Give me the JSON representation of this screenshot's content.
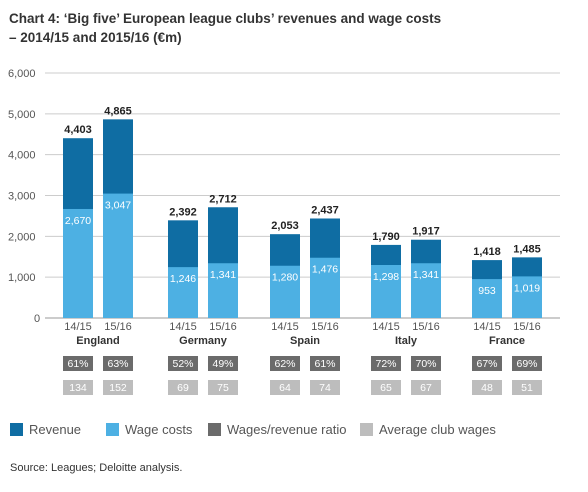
{
  "title_lines": [
    "Chart 4: ‘Big five’ European league clubs’ revenues and wage costs",
    "– 2014/15 and 2015/16 (€m)"
  ],
  "colors": {
    "revenue": "#0f6da3",
    "wage_costs": "#4db0e3",
    "ratio": "#6b6b6b",
    "avg_wages": "#bdbdbd",
    "grid": "#cccccc",
    "text": "#333333"
  },
  "legend": [
    {
      "label": "Revenue",
      "color": "#0f6da3"
    },
    {
      "label": "Wage costs",
      "color": "#4db0e3"
    },
    {
      "label": "Wages/revenue ratio",
      "color": "#6b6b6b"
    },
    {
      "label": "Average club wages",
      "color": "#bdbdbd"
    }
  ],
  "source": "Source: Leagues; Deloitte analysis.",
  "chart_data": {
    "type": "bar",
    "ylim": [
      0,
      6000
    ],
    "yticks": [
      "0",
      "1,000",
      "2,000",
      "3,000",
      "4,000",
      "5,000",
      "6,000"
    ],
    "grid": true,
    "groups": [
      {
        "name": "England",
        "bars": [
          {
            "season": "14/15",
            "revenue": 4403,
            "revenue_label": "4,403",
            "wages": 2670,
            "wages_label": "2,670",
            "ratio": "61%",
            "avg_wages": "134"
          },
          {
            "season": "15/16",
            "revenue": 4865,
            "revenue_label": "4,865",
            "wages": 3047,
            "wages_label": "3,047",
            "ratio": "63%",
            "avg_wages": "152"
          }
        ]
      },
      {
        "name": "Germany",
        "bars": [
          {
            "season": "14/15",
            "revenue": 2392,
            "revenue_label": "2,392",
            "wages": 1246,
            "wages_label": "1,246",
            "ratio": "52%",
            "avg_wages": "69"
          },
          {
            "season": "15/16",
            "revenue": 2712,
            "revenue_label": "2,712",
            "wages": 1341,
            "wages_label": "1,341",
            "ratio": "49%",
            "avg_wages": "75"
          }
        ]
      },
      {
        "name": "Spain",
        "bars": [
          {
            "season": "14/15",
            "revenue": 2053,
            "revenue_label": "2,053",
            "wages": 1280,
            "wages_label": "1,280",
            "ratio": "62%",
            "avg_wages": "64"
          },
          {
            "season": "15/16",
            "revenue": 2437,
            "revenue_label": "2,437",
            "wages": 1476,
            "wages_label": "1,476",
            "ratio": "61%",
            "avg_wages": "74"
          }
        ]
      },
      {
        "name": "Italy",
        "bars": [
          {
            "season": "14/15",
            "revenue": 1790,
            "revenue_label": "1,790",
            "wages": 1298,
            "wages_label": "1,298",
            "ratio": "72%",
            "avg_wages": "65"
          },
          {
            "season": "15/16",
            "revenue": 1917,
            "revenue_label": "1,917",
            "wages": 1341,
            "wages_label": "1,341",
            "ratio": "70%",
            "avg_wages": "67"
          }
        ]
      },
      {
        "name": "France",
        "bars": [
          {
            "season": "14/15",
            "revenue": 1418,
            "revenue_label": "1,418",
            "wages": 953,
            "wages_label": "953",
            "ratio": "67%",
            "avg_wages": "48"
          },
          {
            "season": "15/16",
            "revenue": 1485,
            "revenue_label": "1,485",
            "wages": 1019,
            "wages_label": "1,019",
            "ratio": "69%",
            "avg_wages": "51"
          }
        ]
      }
    ]
  }
}
